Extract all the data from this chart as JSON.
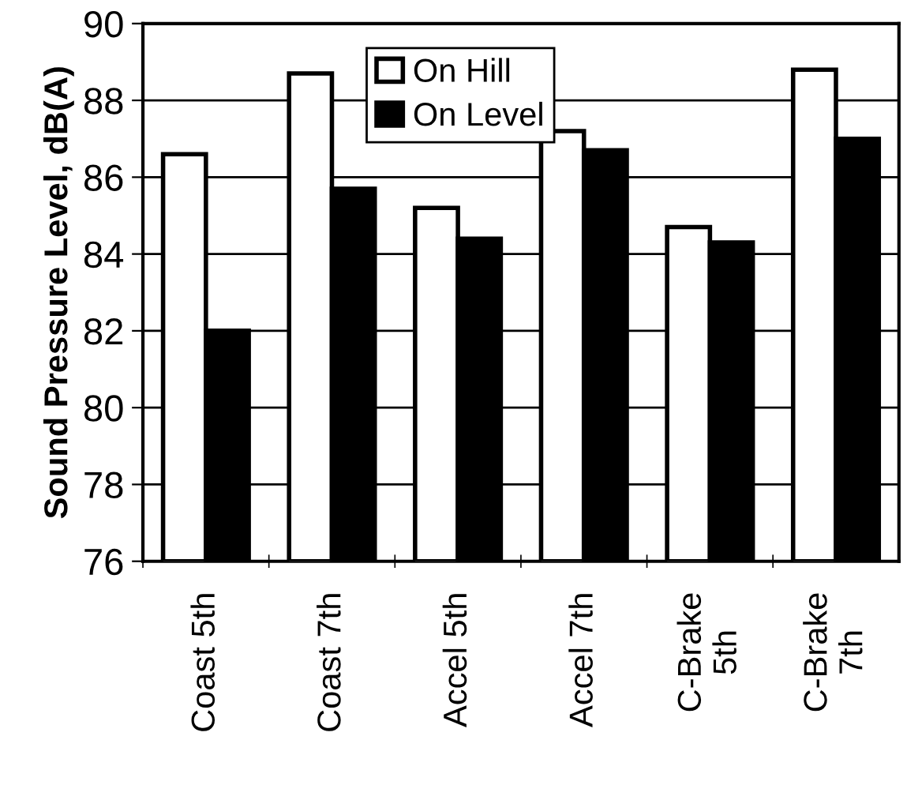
{
  "chart_data": {
    "type": "bar",
    "ylabel": "Sound Pressure Level, dB(A)",
    "categories": [
      "Coast 5th",
      "Coast 7th",
      "Accel 5th",
      "Accel 7th",
      "C-Brake\n5th",
      "C-Brake\n7th"
    ],
    "series": [
      {
        "name": "On Hill",
        "color": "#ffffff",
        "values": [
          86.6,
          88.7,
          85.2,
          87.2,
          84.7,
          88.8
        ]
      },
      {
        "name": "On Level",
        "color": "#000000",
        "values": [
          82.0,
          85.7,
          84.4,
          86.7,
          84.3,
          87.0
        ]
      }
    ],
    "ylim": [
      76,
      90
    ],
    "yticks": [
      76,
      78,
      80,
      82,
      84,
      86,
      88,
      90
    ],
    "grid": "y",
    "legend": "top"
  }
}
